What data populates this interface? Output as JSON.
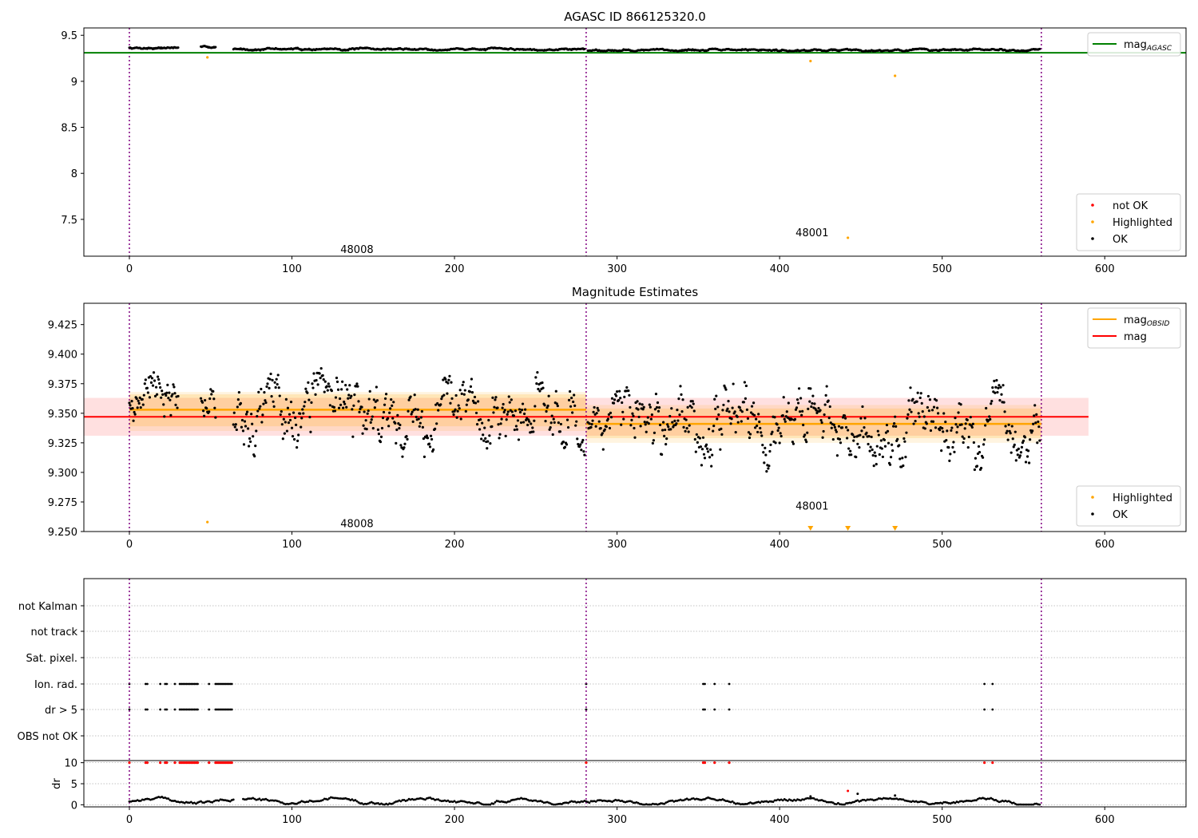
{
  "colors": {
    "ok": "#000000",
    "highlighted": "#ffa500",
    "not_ok": "#ff0000",
    "agasc_line": "#008000",
    "obsid_line": "#ffa500",
    "mag_line": "#ff0000",
    "obsid_boundary": "#800080"
  },
  "chart_data": [
    {
      "type": "scatter",
      "title": "AGASC ID 866125320.0",
      "xlim": [
        -28,
        650
      ],
      "ylim": [
        7.1,
        9.58
      ],
      "xticks": [
        0,
        100,
        200,
        300,
        400,
        500,
        600
      ],
      "yticks": [
        7.5,
        8.0,
        8.5,
        9.0,
        9.5
      ],
      "obsid_boundaries": [
        0,
        281,
        561
      ],
      "obsid_labels": [
        {
          "text": "48008",
          "x": 140,
          "y": 7.18
        },
        {
          "text": "48001",
          "x": 420,
          "y": 7.36
        }
      ],
      "mag_agasc": {
        "value": 9.31,
        "x_range": [
          -28,
          650
        ]
      },
      "highlighted": [
        [
          48,
          9.26
        ],
        [
          419,
          9.22
        ],
        [
          442,
          7.3
        ],
        [
          471,
          9.06
        ]
      ],
      "ok_segments": [
        {
          "x0": 0,
          "x1": 30,
          "mean": 9.365,
          "amp": 0.012
        },
        {
          "x0": 44,
          "x1": 53,
          "mean": 9.37,
          "amp": 0.012
        },
        {
          "x0": 64,
          "x1": 280,
          "mean": 9.35,
          "amp": 0.012
        },
        {
          "x0": 282,
          "x1": 560,
          "mean": 9.34,
          "amp": 0.012
        }
      ],
      "legends": [
        {
          "position": "top-right",
          "entries": [
            {
              "label": "mag",
              "sub": "AGASC",
              "kind": "line",
              "color": "#008000"
            }
          ]
        },
        {
          "position": "bottom-right",
          "entries": [
            {
              "label": "not OK",
              "kind": "marker",
              "color": "#ff0000"
            },
            {
              "label": "Highlighted",
              "kind": "marker",
              "color": "#ffa500"
            },
            {
              "label": "OK",
              "kind": "marker",
              "color": "#000000"
            }
          ]
        }
      ]
    },
    {
      "type": "scatter",
      "title": "Magnitude Estimates",
      "xlim": [
        -28,
        650
      ],
      "ylim": [
        9.25,
        9.443
      ],
      "xticks": [
        0,
        100,
        200,
        300,
        400,
        500,
        600
      ],
      "yticks": [
        9.25,
        9.275,
        9.3,
        9.325,
        9.35,
        9.375,
        9.4,
        9.425
      ],
      "ytick_labels": [
        "9.250",
        "9.275",
        "9.300",
        "9.325",
        "9.350",
        "9.375",
        "9.400",
        "9.425"
      ],
      "obsid_boundaries": [
        0,
        281,
        561
      ],
      "obsid_labels": [
        {
          "text": "48008",
          "x": 140,
          "y": 9.257
        },
        {
          "text": "48001",
          "x": 420,
          "y": 9.272
        }
      ],
      "mag": {
        "value": 9.347,
        "band": [
          9.331,
          9.363
        ],
        "x_range": [
          -28,
          590
        ]
      },
      "mag_obsid": [
        {
          "x0": 0,
          "x1": 281,
          "value": 9.353,
          "band_inner": [
            9.339,
            9.366
          ],
          "band_outer": [
            9.335,
            9.368
          ]
        },
        {
          "x0": 281,
          "x1": 561,
          "value": 9.341,
          "band_inner": [
            9.329,
            9.354
          ],
          "band_outer": [
            9.325,
            9.357
          ]
        }
      ],
      "highlighted": [
        [
          48,
          9.258
        ]
      ],
      "highlighted_offscale": [
        419,
        442,
        471
      ],
      "ok_segments": [
        {
          "x0": 0,
          "x1": 30,
          "mean": 9.368,
          "amp": 0.022
        },
        {
          "x0": 44,
          "x1": 53,
          "mean": 9.37,
          "amp": 0.02
        },
        {
          "x0": 64,
          "x1": 280,
          "mean": 9.352,
          "amp": 0.03
        },
        {
          "x0": 282,
          "x1": 560,
          "mean": 9.339,
          "amp": 0.03
        }
      ],
      "legends": [
        {
          "position": "top-right",
          "entries": [
            {
              "label": "mag",
              "sub": "OBSID",
              "kind": "line",
              "color": "#ffa500"
            },
            {
              "label": "mag",
              "kind": "line",
              "color": "#ff0000"
            }
          ]
        },
        {
          "position": "bottom-right",
          "entries": [
            {
              "label": "Highlighted",
              "kind": "marker",
              "color": "#ffa500"
            },
            {
              "label": "OK",
              "kind": "marker",
              "color": "#000000"
            }
          ]
        }
      ]
    },
    {
      "type": "scatter",
      "title": "",
      "xlim": [
        -28,
        650
      ],
      "xticks": [
        0,
        100,
        200,
        300,
        400,
        500,
        600
      ],
      "obsid_boundaries": [
        0,
        281,
        561
      ],
      "flag_categories": [
        "not Kalman",
        "not track",
        "Sat. pixel.",
        "Ion. rad.",
        "dr > 5",
        "OBS not OK"
      ],
      "flag_points": {
        "Ion. rad.": [
          0,
          10,
          11,
          19,
          22,
          23,
          28,
          31,
          32,
          33,
          34,
          35,
          36,
          37,
          38,
          39,
          40,
          41,
          42,
          49,
          53,
          54,
          55,
          56,
          57,
          58,
          59,
          60,
          61,
          62,
          63,
          281,
          353,
          354,
          360,
          369,
          526,
          531
        ],
        "dr > 5": [
          0,
          10,
          11,
          19,
          22,
          23,
          28,
          31,
          32,
          33,
          34,
          35,
          36,
          37,
          38,
          39,
          40,
          41,
          42,
          49,
          53,
          54,
          55,
          56,
          57,
          58,
          59,
          60,
          61,
          62,
          63,
          281,
          353,
          354,
          360,
          369,
          526,
          531
        ]
      },
      "dr": {
        "ylabel": "dr",
        "ylim": [
          -0.5,
          10.5
        ],
        "yticks": [
          0,
          5,
          10
        ],
        "not_ok_x": [
          0,
          10,
          11,
          19,
          22,
          23,
          28,
          31,
          32,
          33,
          34,
          35,
          36,
          37,
          38,
          39,
          40,
          41,
          42,
          49,
          53,
          54,
          55,
          56,
          57,
          58,
          59,
          60,
          61,
          62,
          63,
          281,
          353,
          354,
          360,
          369,
          526,
          531
        ],
        "not_ok_value": 10,
        "outliers": [
          [
            419,
            2.0
          ],
          [
            442,
            3.3
          ],
          [
            448,
            2.6
          ],
          [
            471,
            2.2
          ]
        ]
      }
    }
  ]
}
